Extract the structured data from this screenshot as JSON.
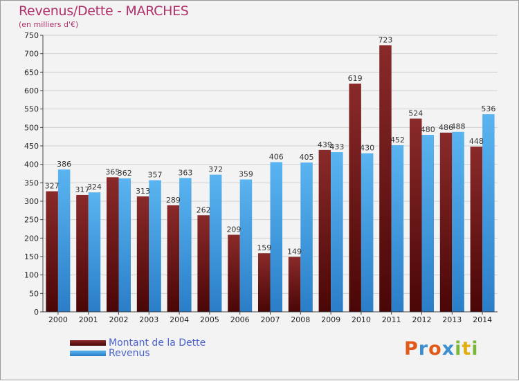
{
  "header": {
    "title": "Revenus/Dette - MARCHES",
    "subtitle": "(en milliers d'€)"
  },
  "legend": {
    "items": [
      {
        "label": "Montant de la Dette",
        "color": "#7a1a1a"
      },
      {
        "label": "Revenus",
        "color": "#3aa0e8"
      }
    ]
  },
  "logo": {
    "text": "Proxiti",
    "colors": [
      "#e05a1a",
      "#3a8fd0",
      "#e05a1a",
      "#3a8fd0",
      "#7ab83a",
      "#e0b010",
      "#7ab83a"
    ]
  },
  "chart_data": {
    "type": "bar",
    "title": "Revenus/Dette - MARCHES",
    "subtitle": "(en milliers d'€)",
    "xlabel": "",
    "ylabel": "",
    "ylim": [
      0,
      750
    ],
    "yticks": [
      0,
      50,
      100,
      150,
      200,
      250,
      300,
      350,
      400,
      450,
      500,
      550,
      600,
      650,
      700,
      750
    ],
    "grid": true,
    "legend_position": "bottom-left",
    "categories": [
      "2000",
      "2001",
      "2002",
      "2003",
      "2004",
      "2005",
      "2006",
      "2007",
      "2008",
      "2009",
      "2010",
      "2011",
      "2012",
      "2013",
      "2014"
    ],
    "series": [
      {
        "name": "Montant de la Dette",
        "color": "#7a1a1a",
        "values": [
          327,
          317,
          365,
          313,
          289,
          262,
          209,
          159,
          149,
          439,
          619,
          723,
          524,
          486,
          448
        ]
      },
      {
        "name": "Revenus",
        "color": "#3aa0e8",
        "values": [
          386,
          324,
          362,
          357,
          363,
          372,
          359,
          406,
          405,
          433,
          430,
          452,
          480,
          488,
          536
        ]
      }
    ]
  }
}
